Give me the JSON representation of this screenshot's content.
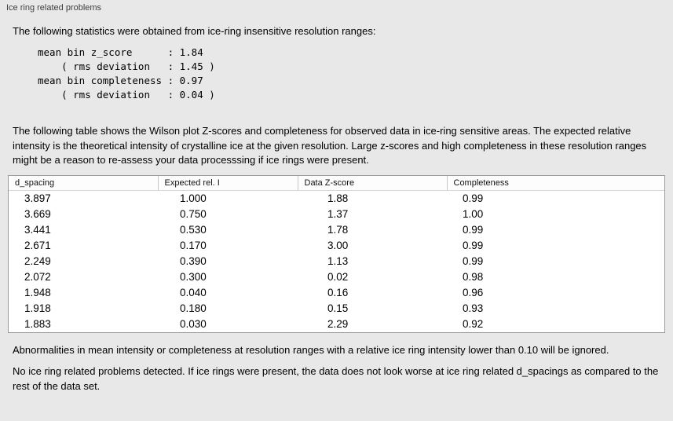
{
  "panel": {
    "title": "Ice ring related problems"
  },
  "intro": "The following statistics were obtained from ice-ring insensitive resolution ranges:",
  "stats": "mean bin z_score      : 1.84\n    ( rms deviation   : 1.45 )\nmean bin completeness : 0.97\n    ( rms deviation   : 0.04 )",
  "description": "The following table shows the Wilson plot Z-scores and completeness for observed data in ice-ring sensitive areas. The expected relative intensity is the theoretical intensity of crystalline ice at the given resolution. Large z-scores and high completeness in these resolution ranges might be a reason to re-assess your data processsing if ice rings were present.",
  "table": {
    "headers": [
      "d_spacing",
      "Expected rel. I",
      "Data Z-score",
      "Completeness"
    ],
    "rows": [
      [
        "3.897",
        "1.000",
        "1.88",
        "0.99"
      ],
      [
        "3.669",
        "0.750",
        "1.37",
        "1.00"
      ],
      [
        "3.441",
        "0.530",
        "1.78",
        "0.99"
      ],
      [
        "2.671",
        "0.170",
        "3.00",
        "0.99"
      ],
      [
        "2.249",
        "0.390",
        "1.13",
        "0.99"
      ],
      [
        "2.072",
        "0.300",
        "0.02",
        "0.98"
      ],
      [
        "1.948",
        "0.040",
        "0.16",
        "0.96"
      ],
      [
        "1.918",
        "0.180",
        "0.15",
        "0.93"
      ],
      [
        "1.883",
        "0.030",
        "2.29",
        "0.92"
      ]
    ]
  },
  "notes": {
    "abnormalities": "Abnormalities in mean intensity or completeness at resolution ranges with a relative ice ring intensity lower than 0.10 will be ignored.",
    "conclusion": "No ice ring related problems detected. If ice rings were present, the data does not look worse at ice ring related d_spacings as compared to the rest of the data set."
  },
  "colors": {
    "background": "#e8e8e8",
    "table_background": "#ffffff",
    "table_border": "#9a9a9a"
  }
}
